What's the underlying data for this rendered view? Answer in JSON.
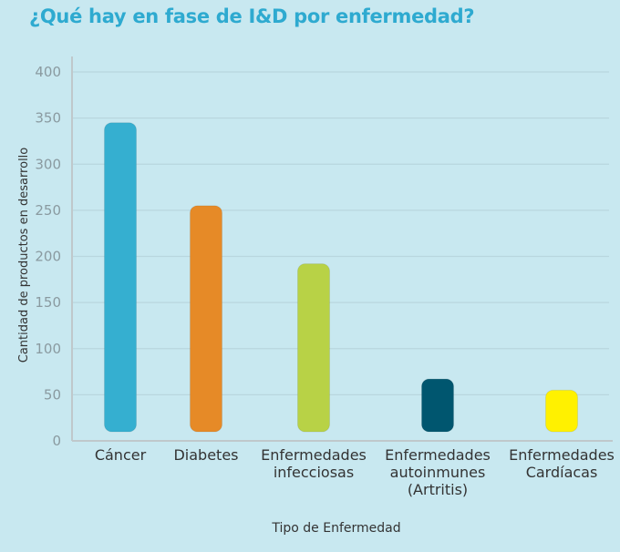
{
  "chart_data": {
    "type": "bar",
    "title": "¿Qué hay en fase de I&D por enfermedad?",
    "xlabel": "Tipo de Enfermedad",
    "ylabel": "Cantidad de productos  en desarrollo",
    "ylim": [
      0,
      400
    ],
    "yticks": [
      "0",
      "50",
      "100",
      "150",
      "200",
      "250",
      "300",
      "350",
      "400"
    ],
    "grid": true,
    "categories": [
      [
        "Cáncer"
      ],
      [
        "Diabetes"
      ],
      [
        "Enfermedades",
        "infecciosas"
      ],
      [
        "Enfermedades",
        "autoinmunes",
        "(Artritis)"
      ],
      [
        "Enfermedades",
        "Cardíacas"
      ]
    ],
    "values": [
      345,
      255,
      192,
      67,
      55
    ],
    "colors": [
      "#35afd0",
      "#e68a27",
      "#b8d246",
      "#00566f",
      "#fff100"
    ]
  }
}
